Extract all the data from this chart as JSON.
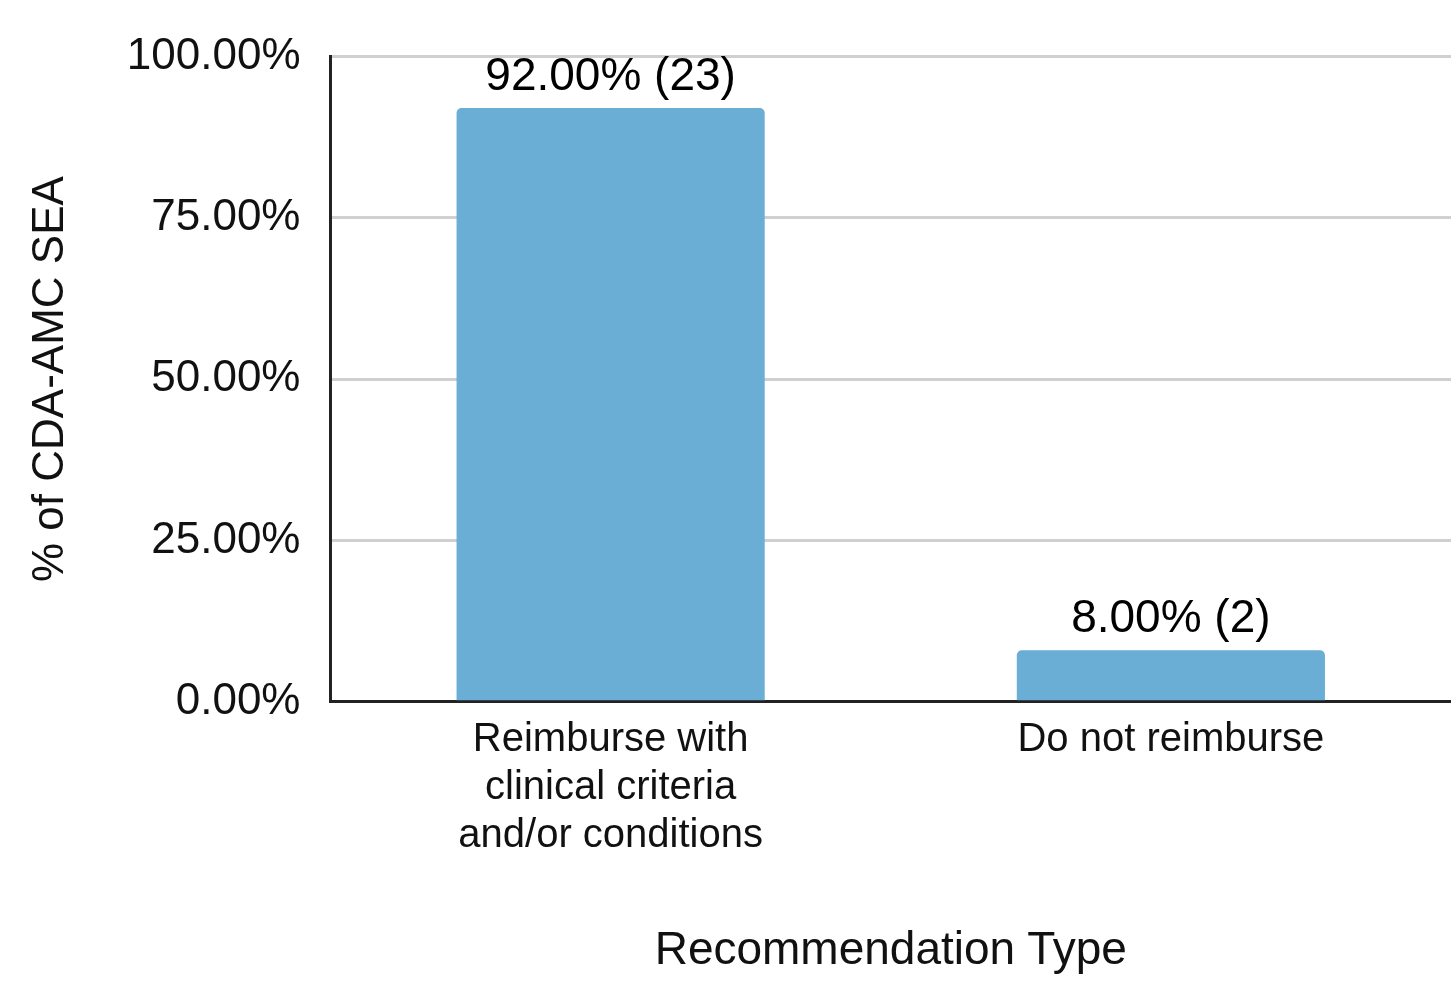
{
  "chart_data": {
    "type": "bar",
    "categories": [
      "Reimburse with clinical criteria and/or conditions",
      "Do not reimburse"
    ],
    "values": [
      92,
      8
    ],
    "color": "#6aadd5",
    "value_labels": [
      "92.00% (23)",
      "8.00% (2)"
    ],
    "xlabel": "Recommendation Type",
    "ylabel": "% of CDA-AMC SEA",
    "ylim": [
      0,
      100
    ],
    "yticks": [
      {
        "value": 0,
        "label": "0.00%"
      },
      {
        "value": 25,
        "label": "25.00%"
      },
      {
        "value": 50,
        "label": "50.00%"
      },
      {
        "value": 75,
        "label": "75.00%"
      },
      {
        "value": 100,
        "label": "100.00%"
      }
    ],
    "grid": "y",
    "legend": false
  }
}
